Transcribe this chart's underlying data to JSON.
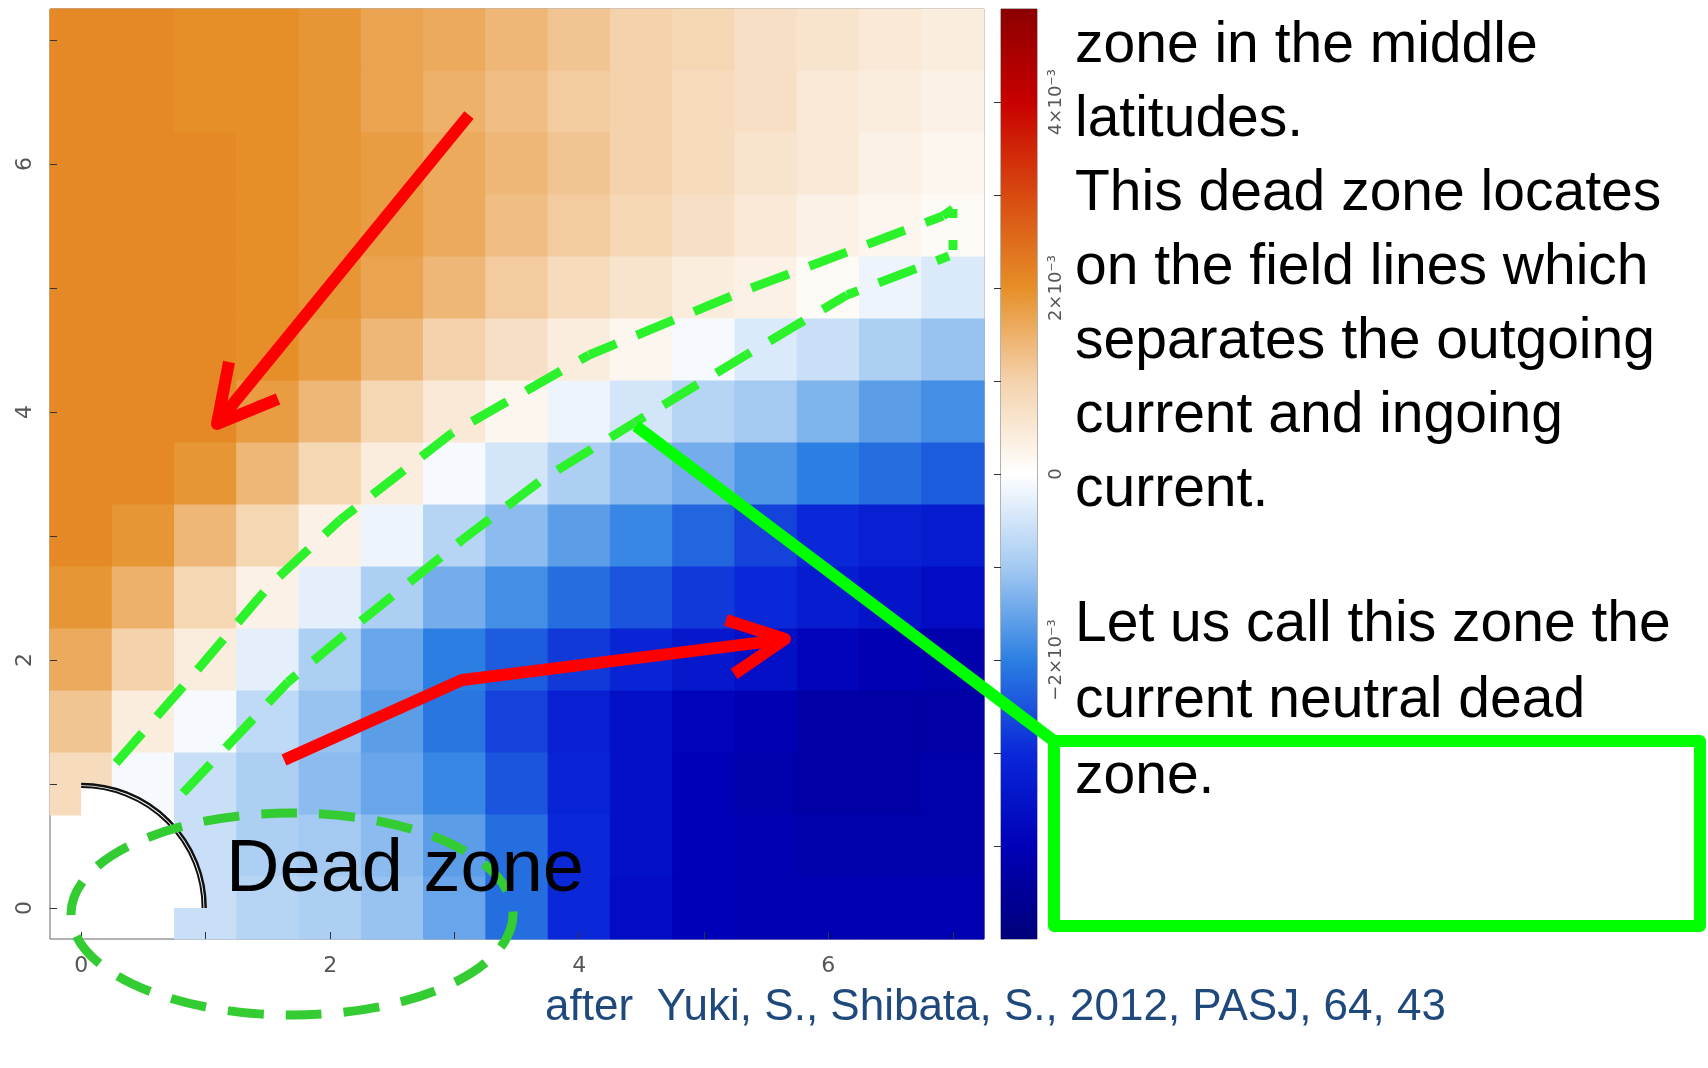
{
  "chart_data": {
    "type": "heatmap",
    "categories": [
      "0",
      null,
      null,
      null,
      "2",
      null,
      null,
      null,
      "4",
      null,
      null,
      null,
      "6",
      null,
      null
    ],
    "y_categories": [
      null,
      null,
      "6",
      null,
      null,
      null,
      "4",
      null,
      null,
      null,
      "2",
      null,
      null,
      null,
      "0"
    ],
    "clim": [
      -0.005,
      0.005
    ],
    "cticks": [
      {
        "value": -0.004,
        "label": null
      },
      {
        "value": -0.003,
        "label": null
      },
      {
        "value": -0.002,
        "label": "−2×10⁻³"
      },
      {
        "value": -0.001,
        "label": null
      },
      0,
      {
        "value": 0.001,
        "label": null
      },
      {
        "value": 0.002,
        "label": "2×10⁻³"
      },
      {
        "value": 0.003,
        "label": null
      },
      {
        "value": 0.004,
        "label": "4×10⁻³"
      }
    ],
    "cells": [
      [
        0.0021,
        0.0021,
        0.002,
        0.002,
        0.0019,
        0.0017,
        0.0016,
        0.0014,
        0.0012,
        0.001,
        0.0009,
        0.0007,
        0.0006,
        0.0005,
        0.0004
      ],
      [
        0.0021,
        0.0021,
        0.002,
        0.002,
        0.0019,
        0.0017,
        0.0015,
        0.0013,
        0.0011,
        0.001,
        0.0008,
        0.0007,
        0.0005,
        0.0004,
        0.0003
      ],
      [
        0.0021,
        0.0021,
        0.0021,
        0.002,
        0.0019,
        0.0018,
        0.0016,
        0.0014,
        0.0012,
        0.001,
        0.0008,
        0.0006,
        0.0005,
        0.0003,
        0.0002
      ],
      [
        0.0021,
        0.0021,
        0.0021,
        0.002,
        0.0019,
        0.0018,
        0.0016,
        0.0013,
        0.0011,
        0.0009,
        0.0007,
        0.0005,
        0.0003,
        0.0002,
        0.0001
      ],
      [
        0.0021,
        0.0021,
        0.0021,
        0.002,
        0.0019,
        0.0017,
        0.0014,
        0.0011,
        0.0008,
        0.0006,
        0.0004,
        0.0003,
        0.0001,
        -0.0002,
        -0.0004
      ],
      [
        0.0021,
        0.0021,
        0.0021,
        0.002,
        0.0018,
        0.0014,
        0.001,
        0.0007,
        0.0004,
        0.0002,
        -0.0001,
        -0.0004,
        -0.0006,
        -0.0009,
        -0.0011
      ],
      [
        0.0021,
        0.0021,
        0.0021,
        0.0018,
        0.0014,
        0.0009,
        0.0005,
        0.0002,
        -0.0002,
        -0.0005,
        -0.0008,
        -0.001,
        -0.0013,
        -0.0016,
        -0.0018
      ],
      [
        0.0021,
        0.0021,
        0.0019,
        0.0014,
        0.0009,
        0.0004,
        -0.0001,
        -0.0005,
        -0.0009,
        -0.0012,
        -0.0014,
        -0.0017,
        -0.002,
        -0.0022,
        -0.0024
      ],
      [
        0.0021,
        0.0019,
        0.0014,
        0.0009,
        0.0003,
        -0.0002,
        -0.0008,
        -0.0012,
        -0.0016,
        -0.0019,
        -0.0023,
        -0.0027,
        -0.003,
        -0.0032,
        -0.0033
      ],
      [
        0.0019,
        0.0015,
        0.0009,
        0.0003,
        -0.0003,
        -0.0009,
        -0.0014,
        -0.0018,
        -0.0022,
        -0.0025,
        -0.0028,
        -0.003,
        -0.0033,
        -0.0035,
        -0.0037
      ],
      [
        0.0016,
        0.001,
        0.0004,
        -0.0003,
        -0.0009,
        -0.0015,
        -0.002,
        -0.0024,
        -0.0028,
        -0.0031,
        -0.0034,
        -0.0036,
        -0.0039,
        -0.0041,
        -0.0042
      ],
      [
        0.0012,
        0.0004,
        -0.0001,
        -0.0007,
        -0.0011,
        -0.0016,
        -0.0021,
        -0.0027,
        -0.0032,
        -0.0036,
        -0.0039,
        -0.0041,
        -0.0043,
        -0.0043,
        -0.0043
      ],
      [
        0.0008,
        -0.0001,
        -0.0006,
        -0.0009,
        -0.0012,
        -0.0015,
        -0.0019,
        -0.0025,
        -0.0031,
        -0.0036,
        -0.004,
        -0.0042,
        -0.0043,
        -0.0043,
        -0.0042
      ],
      [
        null,
        null,
        -0.0006,
        -0.0009,
        -0.001,
        -0.0012,
        -0.0016,
        -0.0022,
        -0.003,
        -0.0036,
        -0.004,
        -0.0041,
        -0.0042,
        -0.0042,
        -0.0042
      ],
      [
        null,
        null,
        -0.0006,
        -0.0008,
        -0.0009,
        -0.0011,
        -0.0015,
        -0.0022,
        -0.003,
        -0.0037,
        -0.004,
        -0.0041,
        -0.0041,
        -0.0041,
        -0.0041
      ]
    ],
    "annotations": [
      "zone in the middle\nlatitudes.\nThis dead zone locates\non the field lines which\nseparates the outgoing\ncurrent and ingoing\ncurrent.",
      "Let us call this zone the\ncurrent neutral dead\nzone.",
      "Dead zone",
      "after  Yuki, S., Shibata, S., 2012, PASJ, 64, 43"
    ]
  }
}
